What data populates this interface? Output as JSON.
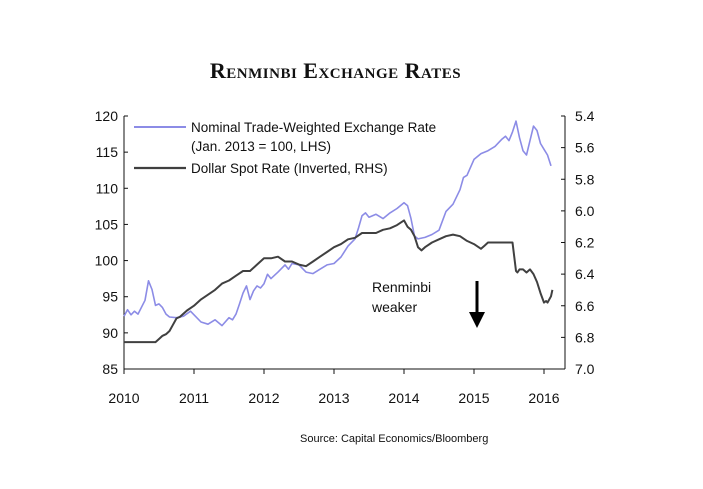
{
  "chart_data": {
    "type": "line",
    "title": "Renminbi Exchange Rates",
    "source": "Source: Capital Economics/Bloomberg",
    "x_ticks": [
      "2010",
      "2011",
      "2012",
      "2013",
      "2014",
      "2015",
      "2016"
    ],
    "y_left": {
      "ticks": [
        "85",
        "90",
        "95",
        "100",
        "105",
        "110",
        "115",
        "120"
      ],
      "min": 85,
      "max": 120
    },
    "y_right": {
      "ticks": [
        "5.4",
        "5.6",
        "5.8",
        "6.0",
        "6.2",
        "6.4",
        "6.6",
        "6.8",
        "7.0"
      ],
      "min": 5.4,
      "max": 7.0,
      "inverted": true
    },
    "grid": false,
    "legend_position": "top-left",
    "annotation": {
      "lines": [
        "Renminbi",
        "weaker"
      ]
    },
    "series": [
      {
        "name": "Nominal Trade-Weighted Exchange Rate",
        "name_line2": "(Jan. 2013 = 100, LHS)",
        "axis": "left",
        "color": "#8c8ce6",
        "x": [
          2010.0,
          2010.05,
          2010.1,
          2010.15,
          2010.2,
          2010.3,
          2010.35,
          2010.4,
          2010.45,
          2010.5,
          2010.55,
          2010.6,
          2010.65,
          2010.75,
          2010.85,
          2010.95,
          2011.0,
          2011.1,
          2011.2,
          2011.3,
          2011.4,
          2011.5,
          2011.55,
          2011.6,
          2011.65,
          2011.7,
          2011.75,
          2011.8,
          2011.85,
          2011.9,
          2011.95,
          2012.0,
          2012.05,
          2012.1,
          2012.2,
          2012.3,
          2012.35,
          2012.4,
          2012.5,
          2012.6,
          2012.7,
          2012.8,
          2012.9,
          2013.0,
          2013.1,
          2013.2,
          2013.3,
          2013.35,
          2013.4,
          2013.45,
          2013.5,
          2013.6,
          2013.7,
          2013.8,
          2013.9,
          2014.0,
          2014.05,
          2014.1,
          2014.15,
          2014.2,
          2014.3,
          2014.4,
          2014.5,
          2014.6,
          2014.7,
          2014.8,
          2014.85,
          2014.9,
          2015.0,
          2015.1,
          2015.2,
          2015.3,
          2015.4,
          2015.45,
          2015.5,
          2015.55,
          2015.6,
          2015.65,
          2015.7,
          2015.75,
          2015.8,
          2015.85,
          2015.9,
          2015.95,
          2016.0,
          2016.05,
          2016.1
        ],
        "y": [
          92.3,
          93.2,
          92.5,
          93.0,
          92.6,
          94.5,
          97.2,
          96.0,
          93.8,
          94.0,
          93.5,
          92.6,
          92.2,
          92.1,
          92.3,
          93.0,
          92.5,
          91.5,
          91.2,
          91.8,
          91.0,
          92.1,
          91.8,
          92.6,
          94.0,
          95.5,
          96.5,
          94.6,
          95.8,
          96.5,
          96.2,
          96.8,
          98.1,
          97.5,
          98.4,
          99.4,
          98.8,
          99.6,
          99.4,
          98.4,
          98.2,
          98.8,
          99.4,
          99.6,
          100.5,
          102.0,
          103.0,
          104.5,
          106.2,
          106.6,
          106.0,
          106.4,
          105.8,
          106.6,
          107.2,
          108.0,
          107.6,
          105.8,
          103.4,
          103.0,
          103.2,
          103.6,
          104.2,
          106.8,
          107.8,
          109.8,
          111.5,
          111.8,
          114.0,
          114.8,
          115.2,
          115.8,
          116.8,
          117.2,
          116.6,
          117.8,
          119.3,
          117.0,
          115.2,
          114.6,
          116.6,
          118.6,
          118.0,
          116.2,
          115.4,
          114.6,
          113.1
        ]
      },
      {
        "name": "Dollar Spot Rate (Inverted, RHS)",
        "axis": "right",
        "color": "#404040",
        "x": [
          2010.0,
          2010.45,
          2010.5,
          2010.55,
          2010.6,
          2010.65,
          2010.7,
          2010.75,
          2010.8,
          2010.9,
          2011.0,
          2011.1,
          2011.2,
          2011.3,
          2011.4,
          2011.5,
          2011.6,
          2011.7,
          2011.8,
          2011.9,
          2012.0,
          2012.1,
          2012.2,
          2012.3,
          2012.4,
          2012.5,
          2012.6,
          2012.7,
          2012.8,
          2012.9,
          2013.0,
          2013.1,
          2013.2,
          2013.3,
          2013.4,
          2013.5,
          2013.6,
          2013.7,
          2013.8,
          2013.9,
          2014.0,
          2014.05,
          2014.1,
          2014.15,
          2014.2,
          2014.25,
          2014.3,
          2014.4,
          2014.5,
          2014.6,
          2014.7,
          2014.8,
          2014.9,
          2015.0,
          2015.1,
          2015.15,
          2015.2,
          2015.3,
          2015.4,
          2015.5,
          2015.55,
          2015.6,
          2015.62,
          2015.65,
          2015.7,
          2015.75,
          2015.8,
          2015.85,
          2015.9,
          2015.95,
          2016.0,
          2016.03,
          2016.05,
          2016.1,
          2016.12
        ],
        "y": [
          6.83,
          6.83,
          6.81,
          6.79,
          6.78,
          6.76,
          6.72,
          6.68,
          6.67,
          6.63,
          6.6,
          6.56,
          6.53,
          6.5,
          6.46,
          6.44,
          6.41,
          6.38,
          6.38,
          6.34,
          6.3,
          6.3,
          6.29,
          6.32,
          6.32,
          6.34,
          6.35,
          6.32,
          6.29,
          6.26,
          6.23,
          6.21,
          6.18,
          6.17,
          6.14,
          6.14,
          6.14,
          6.12,
          6.11,
          6.09,
          6.06,
          6.1,
          6.12,
          6.16,
          6.23,
          6.25,
          6.23,
          6.2,
          6.18,
          6.16,
          6.15,
          6.16,
          6.19,
          6.21,
          6.24,
          6.22,
          6.2,
          6.2,
          6.2,
          6.2,
          6.2,
          6.38,
          6.39,
          6.37,
          6.37,
          6.39,
          6.37,
          6.4,
          6.45,
          6.52,
          6.58,
          6.57,
          6.58,
          6.54,
          6.5
        ]
      }
    ]
  }
}
